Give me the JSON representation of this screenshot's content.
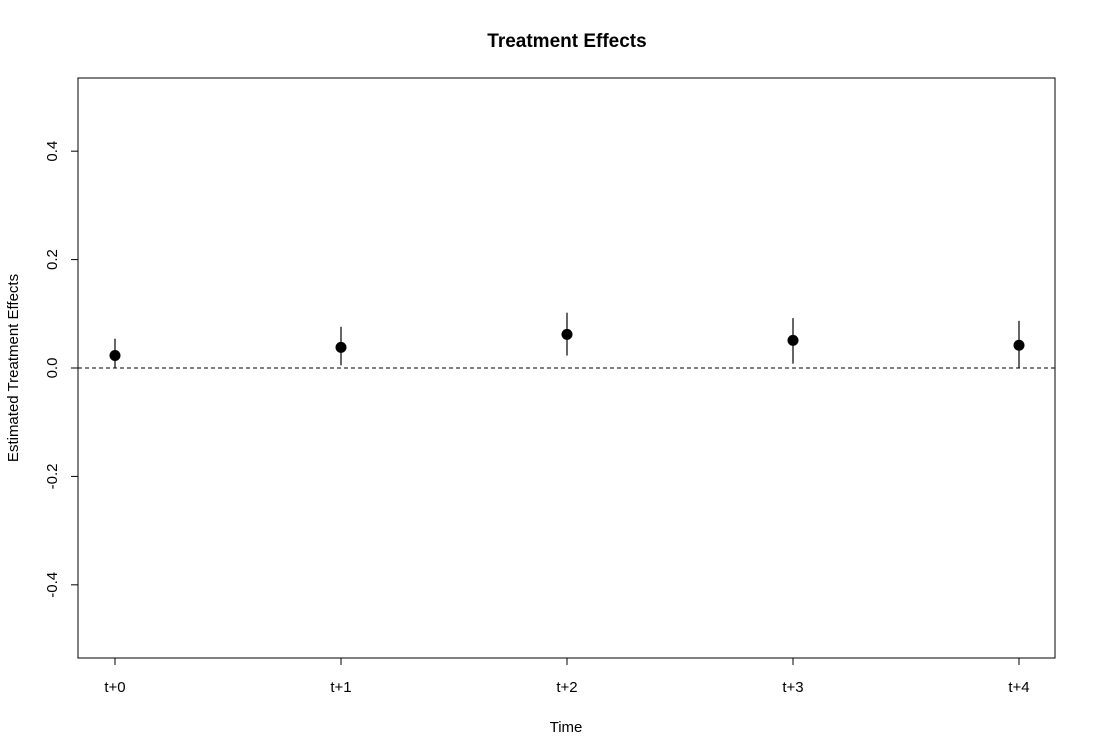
{
  "chart_data": {
    "type": "scatter",
    "title": "Treatment Effects",
    "xlabel": "Time",
    "ylabel": "Estimated Treatment Effects",
    "categories": [
      "t+0",
      "t+1",
      "t+2",
      "t+3",
      "t+4"
    ],
    "series": [
      {
        "values": [
          0.023,
          0.038,
          0.062,
          0.051,
          0.042
        ],
        "ci_lower": [
          0.0,
          0.005,
          0.023,
          0.008,
          0.0
        ],
        "ci_upper": [
          0.054,
          0.076,
          0.102,
          0.092,
          0.087
        ]
      }
    ],
    "reference_line": 0,
    "ylim": [
      -0.535,
      0.535
    ],
    "yticks": [
      -0.4,
      -0.2,
      0.0,
      0.2,
      0.4
    ],
    "ytick_labels": [
      "-0.4",
      "-0.2",
      "0.0",
      "0.2",
      "0.4"
    ],
    "grid": false,
    "legend": "none",
    "point_color": "#000000",
    "reference_line_style": "dashed"
  }
}
